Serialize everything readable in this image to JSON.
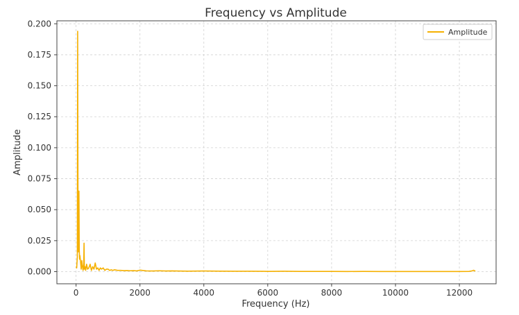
{
  "chart_data": {
    "type": "line",
    "title": "Frequency vs Amplitude",
    "xlabel": "Frequency (Hz)",
    "ylabel": "Amplitude",
    "xlim": [
      -600,
      13150
    ],
    "ylim": [
      -0.0098,
      0.2024
    ],
    "xticks": [
      0,
      2000,
      4000,
      6000,
      8000,
      10000,
      12000
    ],
    "xtick_labels": [
      "0",
      "2000",
      "4000",
      "6000",
      "8000",
      "10000",
      "12000"
    ],
    "yticks": [
      0.0,
      0.025,
      0.05,
      0.075,
      0.1,
      0.125,
      0.15,
      0.175,
      0.2
    ],
    "ytick_labels": [
      "0.000",
      "0.025",
      "0.050",
      "0.075",
      "0.100",
      "0.125",
      "0.150",
      "0.175",
      "0.200"
    ],
    "grid": true,
    "legend_position": "top-right",
    "series": [
      {
        "name": "Amplitude",
        "color": "#f5b000",
        "x": [
          0,
          20,
          40,
          50,
          60,
          70,
          80,
          90,
          100,
          110,
          120,
          140,
          160,
          180,
          200,
          220,
          240,
          250,
          260,
          280,
          300,
          330,
          360,
          400,
          440,
          480,
          520,
          560,
          600,
          640,
          680,
          720,
          760,
          800,
          850,
          900,
          950,
          1000,
          1050,
          1100,
          1150,
          1200,
          1300,
          1400,
          1500,
          1600,
          1700,
          1800,
          1900,
          2000,
          2200,
          2400,
          2600,
          2800,
          3000,
          3500,
          4000,
          4500,
          5000,
          5500,
          6000,
          6500,
          7000,
          7500,
          8000,
          8500,
          9000,
          9500,
          10000,
          10500,
          11000,
          11500,
          12000,
          12300,
          12400,
          12450,
          12500
        ],
        "y": [
          0.004,
          0.003,
          0.012,
          0.194,
          0.06,
          0.016,
          0.025,
          0.065,
          0.018,
          0.01,
          0.013,
          0.008,
          0.002,
          0.009,
          0.004,
          0.001,
          0.006,
          0.023,
          0.002,
          0.004,
          0.001,
          0.006,
          0.002,
          0.003,
          0.006,
          0.001,
          0.004,
          0.002,
          0.007,
          0.002,
          0.003,
          0.001,
          0.003,
          0.002,
          0.003,
          0.001,
          0.002,
          0.002,
          0.001,
          0.0015,
          0.001,
          0.0015,
          0.001,
          0.001,
          0.0008,
          0.0009,
          0.0007,
          0.0008,
          0.0006,
          0.0012,
          0.0006,
          0.0005,
          0.0007,
          0.0005,
          0.0006,
          0.0004,
          0.0005,
          0.0004,
          0.0003,
          0.0003,
          0.0002,
          0.0003,
          0.0002,
          0.0002,
          0.0002,
          0.0001,
          0.0002,
          0.0001,
          0.0001,
          0.0001,
          0.0001,
          0.0001,
          0.0001,
          0.0002,
          0.0006,
          0.0011,
          0.0004
        ]
      }
    ]
  }
}
